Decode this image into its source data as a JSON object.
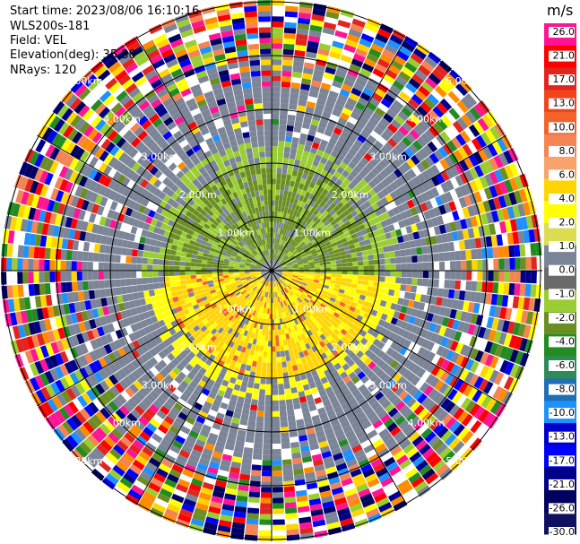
{
  "header": {
    "start_time": "Start time: 2023/08/06 16:10:16",
    "instrument": "WLS200s-181",
    "field": "Field: VEL",
    "elevation": "Elevation(deg): 35.30",
    "nrays": "NRays: 120"
  },
  "colorbar": {
    "unit": "m/s",
    "ticks": [
      "26.0",
      "21.0",
      "17.0",
      "13.0",
      "10.0",
      "8.0",
      "6.0",
      "4.0",
      "2.0",
      "1.0",
      "0.0",
      "-1.0",
      "-2.0",
      "-4.0",
      "-6.0",
      "-8.0",
      "-10.0",
      "-13.0",
      "-17.0",
      "-21.0",
      "-26.0",
      "-30.0"
    ],
    "colors": [
      "#ff1493",
      "#ff0000",
      "#e3241e",
      "#f0441c",
      "#f4632a",
      "#f58354",
      "#f7a36b",
      "#ffd400",
      "#ffff00",
      "#dcdc50",
      "#7b8597",
      "#6a6a6a",
      "#9acd32",
      "#6b8e23",
      "#228b22",
      "#2e8b57",
      "#1e6fb4",
      "#1e90ff",
      "#0000cd",
      "#0000ff",
      "#00008b",
      "#000060",
      "#101060"
    ]
  },
  "chart_data": {
    "type": "heatmap",
    "subtype": "polar PPI (plan position indicator) radial velocity",
    "field": "VEL",
    "units": "m/s",
    "rays": 120,
    "range_rings_km": [
      1.0,
      2.0,
      3.0,
      4.0,
      5.0
    ],
    "ring_label_text": "km",
    "color_scale": {
      "min": -30.0,
      "max": 26.0,
      "ticks": [
        26.0,
        21.0,
        17.0,
        13.0,
        10.0,
        8.0,
        6.0,
        4.0,
        2.0,
        1.0,
        0.0,
        -1.0,
        -2.0,
        -4.0,
        -6.0,
        -8.0,
        -10.0,
        -13.0,
        -17.0,
        -21.0,
        -26.0,
        -30.0
      ]
    },
    "pattern": {
      "near_range_north": "green (about -2 to -4 m/s, toward)",
      "near_range_south": "yellow (about +2 to +4 m/s, away)",
      "middle_ring": "gray noise (0 to +1 m/s)",
      "far_range": "random multicolor noise"
    },
    "grid": true
  }
}
